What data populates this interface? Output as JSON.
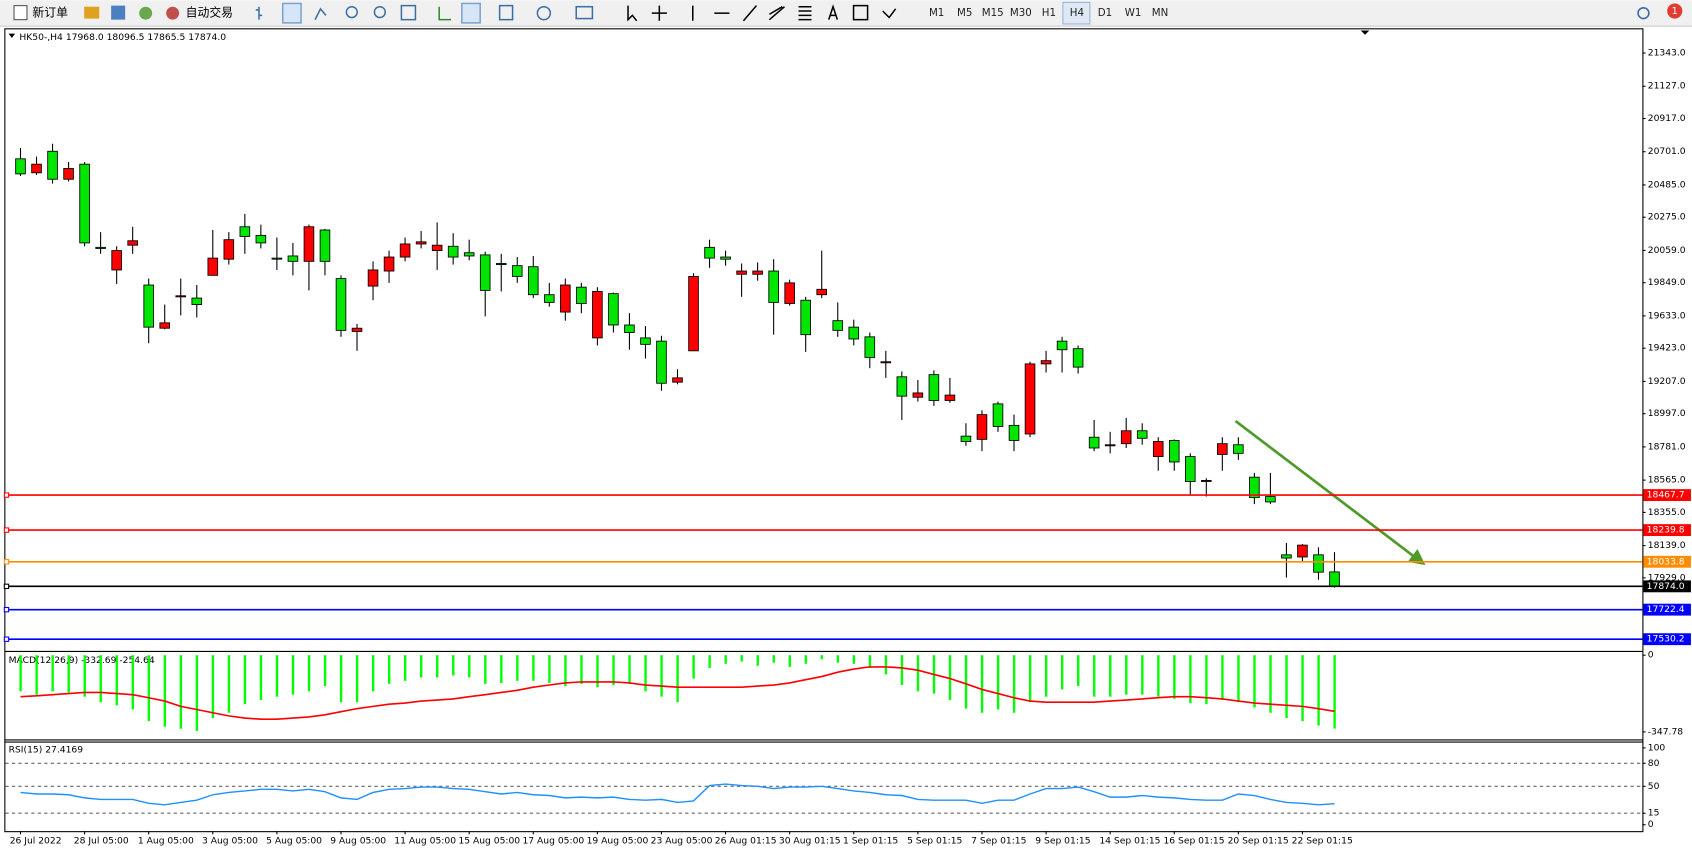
{
  "toolbar": {
    "new_order": "新订单",
    "auto_trading": "自动交易",
    "timeframes": [
      "M1",
      "M5",
      "M15",
      "M30",
      "H1",
      "H4",
      "D1",
      "W1",
      "MN"
    ],
    "notifications": "1"
  },
  "chart_data": [
    {
      "type": "candlestick",
      "title": "HK50-,H4",
      "header_values": [
        "17968.0",
        "18096.5",
        "17865.5",
        "17874.0"
      ],
      "categories": [
        "26 Jul 2022",
        null,
        null,
        null,
        "28 Jul 05:00",
        null,
        null,
        null,
        "1 Aug 05:00",
        null,
        null,
        null,
        "3 Aug 05:00",
        null,
        null,
        null,
        "5 Aug 05:00",
        null,
        null,
        null,
        "9 Aug 05:00",
        null,
        null,
        null,
        "11 Aug 05:00",
        null,
        null,
        null,
        "15 Aug 05:00",
        null,
        null,
        null,
        "17 Aug 05:00",
        null,
        null,
        null,
        "19 Aug 05:00",
        null,
        null,
        null,
        "23 Aug 05:00",
        null,
        null,
        null,
        "26 Aug 01:15",
        null,
        null,
        null,
        "30 Aug 01:15",
        null,
        null,
        null,
        "1 Sep 01:15",
        null,
        null,
        null,
        "5 Sep 01:15",
        null,
        null,
        null,
        "7 Sep 01:15",
        null,
        null,
        null,
        "9 Sep 01:15",
        null,
        null,
        null,
        "14 Sep 01:15",
        null,
        null,
        null,
        "16 Sep 01:15",
        null,
        null,
        null,
        "20 Sep 01:15",
        null,
        null,
        null,
        "22 Sep 01:15",
        null,
        null
      ],
      "open": [
        20655,
        20564,
        20704,
        20522,
        20620,
        20079,
        19932,
        20093,
        19834,
        19553,
        19757,
        19749,
        19897,
        20002,
        20213,
        20157,
        20009,
        20023,
        19988,
        20192,
        19876,
        19532,
        19827,
        19925,
        20016,
        20101,
        20058,
        20086,
        20044,
        20030,
        19974,
        19960,
        19953,
        19771,
        19658,
        19820,
        19490,
        19778,
        19574,
        19490,
        19469,
        19202,
        19406,
        20079,
        20016,
        19904,
        19904,
        19925,
        19714,
        19735,
        19771,
        19602,
        19560,
        19497,
        19335,
        19237,
        19104,
        19251,
        19083,
        18851,
        18830,
        19061,
        18921,
        18865,
        19321,
        19469,
        19420,
        18844,
        18788,
        18802,
        18886,
        18718,
        18823,
        18718,
        18556,
        18732,
        18795,
        18584,
        18458,
        18079,
        18065,
        18079,
        17968
      ],
      "high": [
        20725,
        20669,
        20753,
        20634,
        20634,
        20178,
        20086,
        20213,
        19876,
        19707,
        19876,
        19834,
        20192,
        20178,
        20297,
        20227,
        20143,
        20108,
        20227,
        20199,
        19897,
        19581,
        19988,
        20058,
        20143,
        20185,
        20241,
        20171,
        20129,
        20051,
        20037,
        20016,
        20023,
        19848,
        19876,
        19848,
        19820,
        19785,
        19651,
        19567,
        19504,
        19286,
        19911,
        20129,
        20058,
        19974,
        19981,
        20002,
        19869,
        19757,
        20058,
        19721,
        19609,
        19525,
        19406,
        19272,
        19216,
        19279,
        19230,
        18935,
        19019,
        19076,
        18991,
        19335,
        19406,
        19497,
        19441,
        18956,
        18879,
        18970,
        18935,
        18844,
        18830,
        18739,
        18577,
        18844,
        18844,
        18612,
        18612,
        18156,
        18149,
        18128,
        18096.5
      ],
      "low": [
        20543,
        20550,
        20494,
        20508,
        20086,
        20037,
        19841,
        20037,
        19455,
        19546,
        19637,
        19623,
        19897,
        19967,
        20037,
        20072,
        19932,
        19897,
        19799,
        19897,
        19497,
        19406,
        19735,
        19848,
        19988,
        20072,
        19932,
        19967,
        19995,
        19630,
        19792,
        19848,
        19749,
        19693,
        19602,
        19651,
        19441,
        19525,
        19413,
        19356,
        19146,
        19188,
        19406,
        19946,
        19960,
        19757,
        19862,
        19511,
        19700,
        19399,
        19749,
        19497,
        19441,
        19293,
        19230,
        18956,
        19076,
        19048,
        19068,
        18788,
        18753,
        18879,
        18753,
        18844,
        19265,
        19265,
        19258,
        18753,
        18739,
        18774,
        18795,
        18626,
        18626,
        18472,
        18458,
        18626,
        18697,
        18409,
        18409,
        17931,
        18037,
        17917,
        17865.5
      ],
      "close": [
        20557,
        20620,
        20522,
        20592,
        20108,
        20072,
        20058,
        20122,
        19560,
        19588,
        19764,
        19707,
        20009,
        20129,
        20150,
        20108,
        20002,
        19988,
        20213,
        19988,
        19539,
        19553,
        19932,
        20016,
        20101,
        20115,
        20093,
        20016,
        20023,
        19799,
        19967,
        19890,
        19771,
        19721,
        19834,
        19714,
        19792,
        19574,
        19525,
        19448,
        19195,
        19230,
        19890,
        20009,
        20002,
        19925,
        19925,
        19721,
        19848,
        19511,
        19806,
        19539,
        19483,
        19363,
        19335,
        19111,
        19132,
        19083,
        19118,
        18816,
        18991,
        18914,
        18823,
        19321,
        19342,
        19413,
        19300,
        18774,
        18795,
        18886,
        18837,
        18816,
        18683,
        18556,
        18563,
        18802,
        18739,
        18451,
        18423,
        18058,
        18142,
        17966,
        17874
      ],
      "up_color": "#ff0000",
      "down_color": "#00e600",
      "ylim": [
        17454,
        21497
      ],
      "yticks": [
        {
          "value": 21343,
          "label": "21343.0"
        },
        {
          "value": 21127,
          "label": "21127.0"
        },
        {
          "value": 20917,
          "label": "20917.0"
        },
        {
          "value": 20701,
          "label": "20701.0"
        },
        {
          "value": 20485,
          "label": "20485.0"
        },
        {
          "value": 20275,
          "label": "20275.0"
        },
        {
          "value": 20059,
          "label": "20059.0"
        },
        {
          "value": 19849,
          "label": "19849.0"
        },
        {
          "value": 19633,
          "label": "19633.0"
        },
        {
          "value": 19423,
          "label": "19423.0"
        },
        {
          "value": 19207,
          "label": "19207.0"
        },
        {
          "value": 18997,
          "label": "18997.0"
        },
        {
          "value": 18781,
          "label": "18781.0"
        },
        {
          "value": 18565,
          "label": "18565.0"
        },
        {
          "value": 18355,
          "label": "18355.0"
        },
        {
          "value": 18139,
          "label": "18139.0"
        },
        {
          "value": 17929,
          "label": "17929.0"
        }
      ],
      "levels": [
        {
          "value": 18467.7,
          "label": "18467.7",
          "color": "#ff0000"
        },
        {
          "value": 18239.8,
          "label": "18239.8",
          "color": "#ff0000"
        },
        {
          "value": 18033.8,
          "label": "18033.8",
          "color": "#ff8c00"
        },
        {
          "value": 17874,
          "label": "17874.0",
          "color": "#000000"
        },
        {
          "value": 17722.4,
          "label": "17722.4",
          "color": "#0000ff"
        },
        {
          "value": 17530.2,
          "label": "17530.2",
          "color": "#0000ff"
        }
      ]
    },
    {
      "type": "macd",
      "title": "MACD(12,26,9) -332.69 -254.64",
      "series": [
        {
          "color": "#00ff00",
          "values": [
            -164,
            -179,
            -164,
            -169,
            -188,
            -213,
            -227,
            -246,
            -299,
            -324,
            -333,
            -343,
            -285,
            -261,
            -222,
            -203,
            -188,
            -179,
            -164,
            -140,
            -213,
            -213,
            -164,
            -130,
            -116,
            -101,
            -101,
            -92,
            -101,
            -130,
            -126,
            -116,
            -116,
            -126,
            -140,
            -130,
            -145,
            -135,
            -130,
            -164,
            -188,
            -213,
            -106,
            -58,
            -39,
            -29,
            -48,
            -34,
            -53,
            -39,
            -19,
            -34,
            -39,
            -58,
            -87,
            -135,
            -164,
            -174,
            -203,
            -242,
            -261,
            -246,
            -261,
            -213,
            -188,
            -155,
            -140,
            -188,
            -188,
            -179,
            -179,
            -188,
            -198,
            -217,
            -222,
            -203,
            -213,
            -237,
            -261,
            -285,
            -299,
            -319,
            -332.69
          ]
        },
        {
          "color": "#ff0000",
          "values": [
            -188,
            -184,
            -179,
            -174,
            -169,
            -169,
            -174,
            -179,
            -193,
            -208,
            -232,
            -246,
            -261,
            -275,
            -285,
            -290,
            -290,
            -285,
            -280,
            -270,
            -256,
            -242,
            -232,
            -222,
            -217,
            -208,
            -203,
            -198,
            -188,
            -179,
            -169,
            -159,
            -145,
            -135,
            -126,
            -121,
            -121,
            -121,
            -126,
            -135,
            -140,
            -145,
            -145,
            -145,
            -145,
            -145,
            -140,
            -135,
            -126,
            -111,
            -97,
            -77,
            -63,
            -53,
            -53,
            -58,
            -68,
            -87,
            -106,
            -130,
            -155,
            -174,
            -193,
            -208,
            -213,
            -213,
            -213,
            -213,
            -208,
            -203,
            -198,
            -193,
            -188,
            -188,
            -193,
            -198,
            -208,
            -217,
            -222,
            -227,
            -232,
            -242,
            -254.64
          ]
        }
      ],
      "ylim": [
        -381.6,
        14.5
      ],
      "yticks": [
        0,
        -347.78
      ]
    },
    {
      "type": "line",
      "title": "RSI(15) 27.4169",
      "series": [
        {
          "color": "#1e90ff",
          "values": [
            42,
            40,
            40,
            39,
            35,
            33,
            33,
            33,
            28,
            26,
            29,
            32,
            39,
            42,
            44,
            46,
            46,
            44,
            46,
            43,
            35,
            33,
            42,
            46,
            47,
            49,
            49,
            47,
            46,
            43,
            40,
            42,
            39,
            38,
            35,
            36,
            35,
            36,
            33,
            32,
            33,
            29,
            31,
            51,
            53,
            51,
            50,
            47,
            49,
            49,
            50,
            47,
            44,
            42,
            39,
            38,
            33,
            32,
            32,
            32,
            28,
            32,
            32,
            40,
            47,
            47,
            49,
            43,
            36,
            36,
            38,
            36,
            35,
            33,
            32,
            32,
            40,
            38,
            33,
            29,
            28,
            26,
            27.4169
          ]
        }
      ],
      "ylim": [
        -8.3,
        106.9
      ],
      "yticks": [
        100,
        80,
        50,
        15,
        0
      ],
      "levels": [
        80,
        50,
        15
      ]
    }
  ]
}
